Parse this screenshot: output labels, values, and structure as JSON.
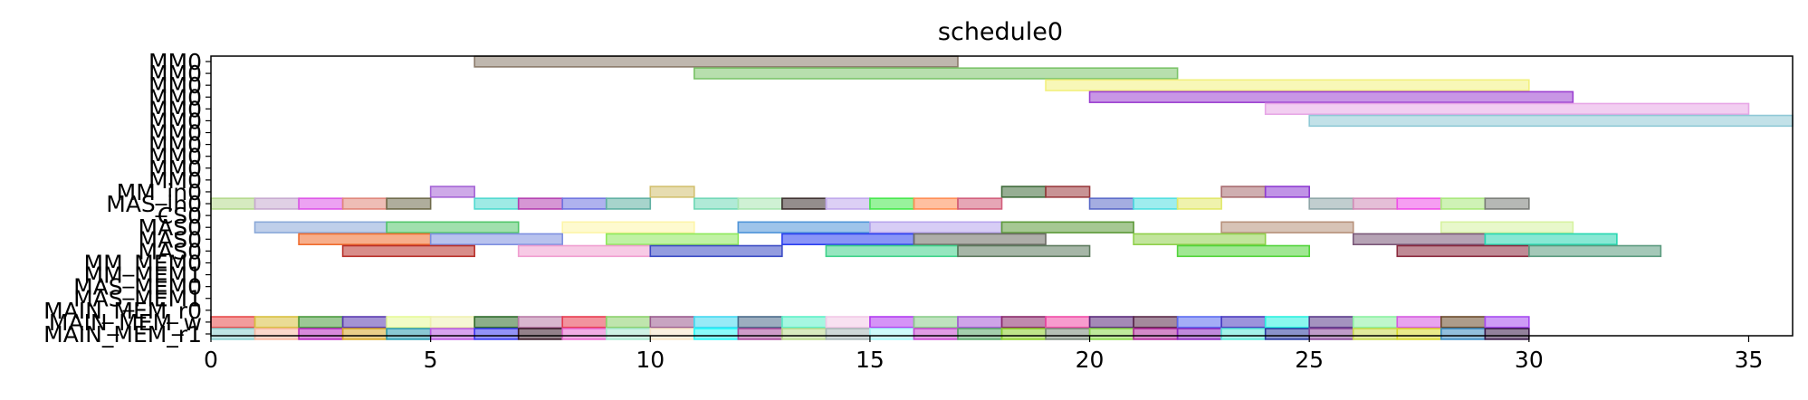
{
  "chart_data": {
    "type": "gantt",
    "title": "schedule0",
    "xlim": [
      0,
      36
    ],
    "x_ticks": [
      0,
      5,
      10,
      15,
      20,
      25,
      30,
      35
    ],
    "rows": [
      "MM0",
      "MM0",
      "MM0",
      "MM0",
      "MM0",
      "MM0",
      "MM0",
      "MM0",
      "MM0",
      "MM0",
      "MM0",
      "MM_in0",
      "MAS_in0",
      "CS0",
      "MAS0",
      "MAS0",
      "MAS0",
      "MM_MEM0",
      "MM_MEM1",
      "MAS_MEM0",
      "MAS_MEM1",
      "MAIN_MEM_r0",
      "MAIN_MEM_w",
      "MAIN_MEM_r1"
    ],
    "tasks": [
      {
        "row": 0,
        "start": 6,
        "end": 17,
        "color": "#8b7b6b"
      },
      {
        "row": 1,
        "start": 11,
        "end": 22,
        "color": "#7cc46a"
      },
      {
        "row": 2,
        "start": 19,
        "end": 30,
        "color": "#f2f07e"
      },
      {
        "row": 3,
        "start": 20,
        "end": 31,
        "color": "#9b3fd0"
      },
      {
        "row": 4,
        "start": 24,
        "end": 35,
        "color": "#e7a6e6"
      },
      {
        "row": 5,
        "start": 25,
        "end": 36,
        "color": "#8fc9d6"
      },
      {
        "row": 11,
        "start": 5,
        "end": 6,
        "color": "#a563d6"
      },
      {
        "row": 11,
        "start": 10,
        "end": 11,
        "color": "#d2c06f"
      },
      {
        "row": 11,
        "start": 18,
        "end": 19,
        "color": "#3f6b3a"
      },
      {
        "row": 11,
        "start": 19,
        "end": 20,
        "color": "#9a3b3e"
      },
      {
        "row": 11,
        "start": 23,
        "end": 24,
        "color": "#a86b6f"
      },
      {
        "row": 11,
        "start": 24,
        "end": 25,
        "color": "#8d3bd1"
      },
      {
        "row": 12,
        "start": 0,
        "end": 1,
        "color": "#b4d98c"
      },
      {
        "row": 12,
        "start": 1,
        "end": 2,
        "color": "#c7a9d0"
      },
      {
        "row": 12,
        "start": 2,
        "end": 3,
        "color": "#dd55e8"
      },
      {
        "row": 12,
        "start": 3,
        "end": 4,
        "color": "#e0867a"
      },
      {
        "row": 12,
        "start": 4,
        "end": 5,
        "color": "#6e6a4a"
      },
      {
        "row": 12,
        "start": 6,
        "end": 7,
        "color": "#4fd9d0"
      },
      {
        "row": 12,
        "start": 7,
        "end": 8,
        "color": "#b43fb0"
      },
      {
        "row": 12,
        "start": 8,
        "end": 9,
        "color": "#6e73e0"
      },
      {
        "row": 12,
        "start": 9,
        "end": 10,
        "color": "#5fb0a2"
      },
      {
        "row": 12,
        "start": 11,
        "end": 12,
        "color": "#6fd8b6"
      },
      {
        "row": 12,
        "start": 12,
        "end": 13,
        "color": "#a8e5b0"
      },
      {
        "row": 12,
        "start": 13,
        "end": 14,
        "color": "#3d302e"
      },
      {
        "row": 12,
        "start": 14,
        "end": 15,
        "color": "#c0a8ec"
      },
      {
        "row": 12,
        "start": 15,
        "end": 16,
        "color": "#44e84a"
      },
      {
        "row": 12,
        "start": 16,
        "end": 17,
        "color": "#ff8c52"
      },
      {
        "row": 12,
        "start": 17,
        "end": 18,
        "color": "#d25d7a"
      },
      {
        "row": 12,
        "start": 20,
        "end": 21,
        "color": "#5a6ac8"
      },
      {
        "row": 12,
        "start": 21,
        "end": 22,
        "color": "#4fdfe0"
      },
      {
        "row": 12,
        "start": 22,
        "end": 23,
        "color": "#e1e86a"
      },
      {
        "row": 12,
        "start": 25,
        "end": 26,
        "color": "#8ea6a8"
      },
      {
        "row": 12,
        "start": 26,
        "end": 27,
        "color": "#d08ab6"
      },
      {
        "row": 12,
        "start": 27,
        "end": 28,
        "color": "#ef4fe8"
      },
      {
        "row": 12,
        "start": 28,
        "end": 29,
        "color": "#a8e87a"
      },
      {
        "row": 12,
        "start": 29,
        "end": 30,
        "color": "#7a7d78"
      },
      {
        "row": 14,
        "start": 1,
        "end": 4,
        "color": "#8aa8d8"
      },
      {
        "row": 14,
        "start": 4,
        "end": 7,
        "color": "#52c66a"
      },
      {
        "row": 14,
        "start": 8,
        "end": 11,
        "color": "#fdf5a8"
      },
      {
        "row": 14,
        "start": 12,
        "end": 15,
        "color": "#4f94d8"
      },
      {
        "row": 14,
        "start": 15,
        "end": 18,
        "color": "#b7a4ec"
      },
      {
        "row": 14,
        "start": 18,
        "end": 21,
        "color": "#5d9a3a"
      },
      {
        "row": 14,
        "start": 23,
        "end": 26,
        "color": "#b7917a"
      },
      {
        "row": 14,
        "start": 28,
        "end": 31,
        "color": "#d6f2a0"
      },
      {
        "row": 15,
        "start": 2,
        "end": 5,
        "color": "#f06b2c"
      },
      {
        "row": 15,
        "start": 5,
        "end": 8,
        "color": "#7d8fe0"
      },
      {
        "row": 15,
        "start": 9,
        "end": 12,
        "color": "#8de85a"
      },
      {
        "row": 15,
        "start": 13,
        "end": 16,
        "color": "#2a3ef0"
      },
      {
        "row": 15,
        "start": 16,
        "end": 19,
        "color": "#6b6b63"
      },
      {
        "row": 15,
        "start": 21,
        "end": 24,
        "color": "#8fd04a"
      },
      {
        "row": 15,
        "start": 26,
        "end": 29,
        "color": "#7a5878"
      },
      {
        "row": 15,
        "start": 29,
        "end": 32,
        "color": "#26d6b0"
      },
      {
        "row": 16,
        "start": 3,
        "end": 6,
        "color": "#b8302a"
      },
      {
        "row": 16,
        "start": 7,
        "end": 10,
        "color": "#f09ed0"
      },
      {
        "row": 16,
        "start": 10,
        "end": 13,
        "color": "#3a4ac4"
      },
      {
        "row": 16,
        "start": 14,
        "end": 17,
        "color": "#3ed28a"
      },
      {
        "row": 16,
        "start": 17,
        "end": 20,
        "color": "#5d7a5e"
      },
      {
        "row": 16,
        "start": 22,
        "end": 25,
        "color": "#52d43a"
      },
      {
        "row": 16,
        "start": 27,
        "end": 30,
        "color": "#8a2a3e"
      },
      {
        "row": 16,
        "start": 30,
        "end": 33,
        "color": "#5a9a7e"
      },
      {
        "row": 22,
        "start": 0,
        "end": 1,
        "color": "#e84a4a"
      },
      {
        "row": 22,
        "start": 1,
        "end": 2,
        "color": "#d8c03e"
      },
      {
        "row": 22,
        "start": 2,
        "end": 3,
        "color": "#4a9a3e"
      },
      {
        "row": 22,
        "start": 3,
        "end": 4,
        "color": "#5a3ab0"
      },
      {
        "row": 22,
        "start": 4,
        "end": 5,
        "color": "#e6fa98"
      },
      {
        "row": 22,
        "start": 5,
        "end": 6,
        "color": "#eef0b0"
      },
      {
        "row": 22,
        "start": 6,
        "end": 7,
        "color": "#2e6b2a"
      },
      {
        "row": 22,
        "start": 7,
        "end": 8,
        "color": "#b87aa6"
      },
      {
        "row": 22,
        "start": 8,
        "end": 9,
        "color": "#e83a4e"
      },
      {
        "row": 22,
        "start": 9,
        "end": 10,
        "color": "#8ad06a"
      },
      {
        "row": 22,
        "start": 10,
        "end": 11,
        "color": "#9a5a8e"
      },
      {
        "row": 22,
        "start": 11,
        "end": 12,
        "color": "#42d8f0"
      },
      {
        "row": 22,
        "start": 12,
        "end": 13,
        "color": "#4a6a8a"
      },
      {
        "row": 22,
        "start": 13,
        "end": 14,
        "color": "#5cf0c8"
      },
      {
        "row": 22,
        "start": 14,
        "end": 15,
        "color": "#f2c8e6"
      },
      {
        "row": 22,
        "start": 15,
        "end": 16,
        "color": "#b23af0"
      },
      {
        "row": 22,
        "start": 16,
        "end": 17,
        "color": "#8acc8a"
      },
      {
        "row": 22,
        "start": 17,
        "end": 18,
        "color": "#a65ad6"
      },
      {
        "row": 22,
        "start": 18,
        "end": 19,
        "color": "#8a2a6a"
      },
      {
        "row": 22,
        "start": 19,
        "end": 20,
        "color": "#f04aa6"
      },
      {
        "row": 22,
        "start": 20,
        "end": 21,
        "color": "#5a2a7a"
      },
      {
        "row": 22,
        "start": 21,
        "end": 22,
        "color": "#5a2a4a"
      },
      {
        "row": 22,
        "start": 22,
        "end": 23,
        "color": "#5a6af0"
      },
      {
        "row": 22,
        "start": 23,
        "end": 24,
        "color": "#4a3ac0"
      },
      {
        "row": 22,
        "start": 24,
        "end": 25,
        "color": "#2af0e0"
      },
      {
        "row": 22,
        "start": 25,
        "end": 26,
        "color": "#5a3a8a"
      },
      {
        "row": 22,
        "start": 26,
        "end": 27,
        "color": "#8af0a0"
      },
      {
        "row": 22,
        "start": 27,
        "end": 28,
        "color": "#d65ae0"
      },
      {
        "row": 22,
        "start": 28,
        "end": 29,
        "color": "#6a4a2a"
      },
      {
        "row": 22,
        "start": 29,
        "end": 30,
        "color": "#a64af0"
      },
      {
        "row": 23,
        "start": 0,
        "end": 1,
        "color": "#8ad0d0"
      },
      {
        "row": 23,
        "start": 1,
        "end": 2,
        "color": "#f8b8a0"
      },
      {
        "row": 23,
        "start": 2,
        "end": 3,
        "color": "#b82ac0"
      },
      {
        "row": 23,
        "start": 3,
        "end": 4,
        "color": "#d8a82a"
      },
      {
        "row": 23,
        "start": 4,
        "end": 5,
        "color": "#2a9ab0"
      },
      {
        "row": 23,
        "start": 5,
        "end": 6,
        "color": "#b858e0"
      },
      {
        "row": 23,
        "start": 6,
        "end": 7,
        "color": "#3a3af0"
      },
      {
        "row": 23,
        "start": 7,
        "end": 8,
        "color": "#3a1a2a"
      },
      {
        "row": 23,
        "start": 8,
        "end": 9,
        "color": "#e86ad0"
      },
      {
        "row": 23,
        "start": 9,
        "end": 10,
        "color": "#a8e8d0"
      },
      {
        "row": 23,
        "start": 10,
        "end": 11,
        "color": "#f8e6c8"
      },
      {
        "row": 23,
        "start": 11,
        "end": 12,
        "color": "#2af8f8"
      },
      {
        "row": 23,
        "start": 12,
        "end": 13,
        "color": "#a84a9a"
      },
      {
        "row": 23,
        "start": 13,
        "end": 14,
        "color": "#b8d88a"
      },
      {
        "row": 23,
        "start": 14,
        "end": 15,
        "color": "#a8b8b8"
      },
      {
        "row": 23,
        "start": 15,
        "end": 16,
        "color": "#a8f8f8"
      },
      {
        "row": 23,
        "start": 16,
        "end": 17,
        "color": "#c84ad0"
      },
      {
        "row": 23,
        "start": 17,
        "end": 18,
        "color": "#5aa86a"
      },
      {
        "row": 23,
        "start": 18,
        "end": 19,
        "color": "#8ad02a"
      },
      {
        "row": 23,
        "start": 19,
        "end": 20,
        "color": "#7a8a7a"
      },
      {
        "row": 23,
        "start": 20,
        "end": 21,
        "color": "#8ad84a"
      },
      {
        "row": 23,
        "start": 21,
        "end": 22,
        "color": "#b02a9a"
      },
      {
        "row": 23,
        "start": 22,
        "end": 23,
        "color": "#8a2ac0"
      },
      {
        "row": 23,
        "start": 23,
        "end": 24,
        "color": "#5ae8d8"
      },
      {
        "row": 23,
        "start": 24,
        "end": 25,
        "color": "#2a3aa0"
      },
      {
        "row": 23,
        "start": 25,
        "end": 26,
        "color": "#8a4a9a"
      },
      {
        "row": 23,
        "start": 26,
        "end": 27,
        "color": "#c8d84a"
      },
      {
        "row": 23,
        "start": 27,
        "end": 28,
        "color": "#d8d82a"
      },
      {
        "row": 23,
        "start": 28,
        "end": 29,
        "color": "#3a8ac0"
      },
      {
        "row": 23,
        "start": 29,
        "end": 30,
        "color": "#3a1a4a"
      }
    ]
  }
}
